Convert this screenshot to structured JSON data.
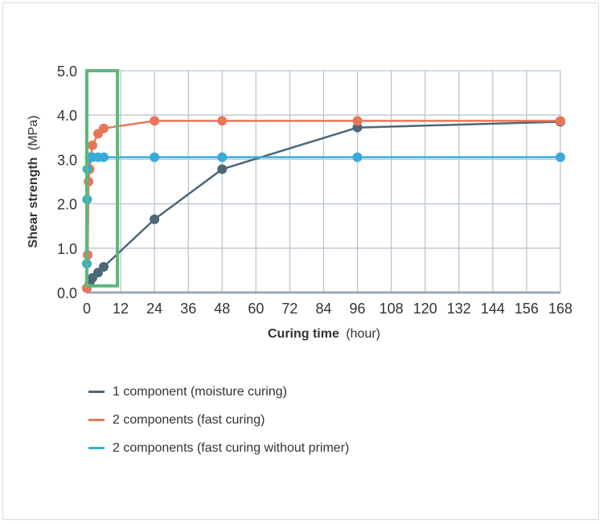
{
  "chart_data": {
    "type": "line",
    "xlabel_bold": "Curing time",
    "xlabel_unit": "(hour)",
    "ylabel_bold": "Shear strength",
    "ylabel_unit": "(MPa)",
    "xlim": [
      0,
      168
    ],
    "ylim": [
      0,
      5
    ],
    "x_ticks": [
      0,
      12,
      24,
      36,
      48,
      60,
      72,
      84,
      96,
      108,
      120,
      132,
      144,
      156,
      168
    ],
    "y_ticks": [
      "0.0",
      "1.0",
      "2.0",
      "3.0",
      "4.0",
      "5.0"
    ],
    "grid": true,
    "legend_position": "bottom",
    "highlight_box": {
      "x": [
        0,
        12
      ],
      "y": [
        0.15,
        5.0
      ],
      "color": "#5cb87a"
    },
    "series": [
      {
        "name": "1 component (moisture curing)",
        "color": "#4d6678",
        "x": [
          0,
          1,
          2,
          4,
          6,
          24,
          48,
          96,
          168
        ],
        "y": [
          0.1,
          0.22,
          0.33,
          0.45,
          0.58,
          1.65,
          2.78,
          3.72,
          3.85
        ]
      },
      {
        "name": "2 components (fast curing)",
        "color": "#e8775a",
        "x": [
          0,
          0.3,
          0.6,
          1,
          2,
          4,
          6,
          24,
          48,
          96,
          168
        ],
        "y": [
          0.1,
          0.85,
          2.5,
          2.78,
          3.32,
          3.58,
          3.7,
          3.87,
          3.87,
          3.87,
          3.87
        ]
      },
      {
        "name": "2 components (fast curing without primer)",
        "color": "#3aabd8",
        "x": [
          0,
          0.1,
          0.2,
          1,
          2,
          4,
          6,
          24,
          48,
          96,
          168
        ],
        "y": [
          0.65,
          2.1,
          2.78,
          3.05,
          3.05,
          3.05,
          3.05,
          3.05,
          3.05,
          3.05,
          3.05
        ]
      }
    ]
  }
}
